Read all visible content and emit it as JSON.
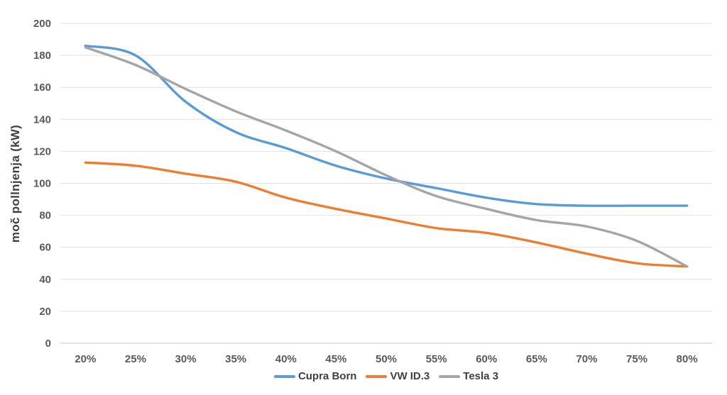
{
  "chart_data": {
    "type": "line",
    "title": "",
    "xlabel": "",
    "ylabel": "moč pollnjenja (kW)",
    "ylim": [
      0,
      200
    ],
    "y_ticks": [
      0,
      20,
      40,
      60,
      80,
      100,
      120,
      140,
      160,
      180,
      200
    ],
    "categories": [
      "20%",
      "25%",
      "30%",
      "35%",
      "40%",
      "45%",
      "50%",
      "55%",
      "60%",
      "65%",
      "70%",
      "75%",
      "80%"
    ],
    "series": [
      {
        "name": "Cupra Born",
        "color": "#5b9bd5",
        "values": [
          186,
          180,
          151,
          132,
          122,
          111,
          103,
          97,
          91,
          87,
          86,
          86,
          86
        ]
      },
      {
        "name": "VW ID.3",
        "color": "#ed7d31",
        "values": [
          113,
          111,
          106,
          101,
          91,
          84,
          78,
          72,
          69,
          63,
          56,
          50,
          48
        ]
      },
      {
        "name": "Tesla 3",
        "color": "#a5a5a5",
        "values": [
          185,
          174,
          159,
          145,
          133,
          120,
          105,
          92,
          84,
          77,
          73,
          64,
          48
        ]
      }
    ],
    "legend_position": "bottom",
    "grid": "horizontal",
    "colors": {
      "gridline": "#e2e2e2",
      "axis_line": "#c6c6c6",
      "tick_label": "#595959",
      "axis_title": "#404040",
      "legend_text": "#404040",
      "background": "#ffffff"
    }
  }
}
